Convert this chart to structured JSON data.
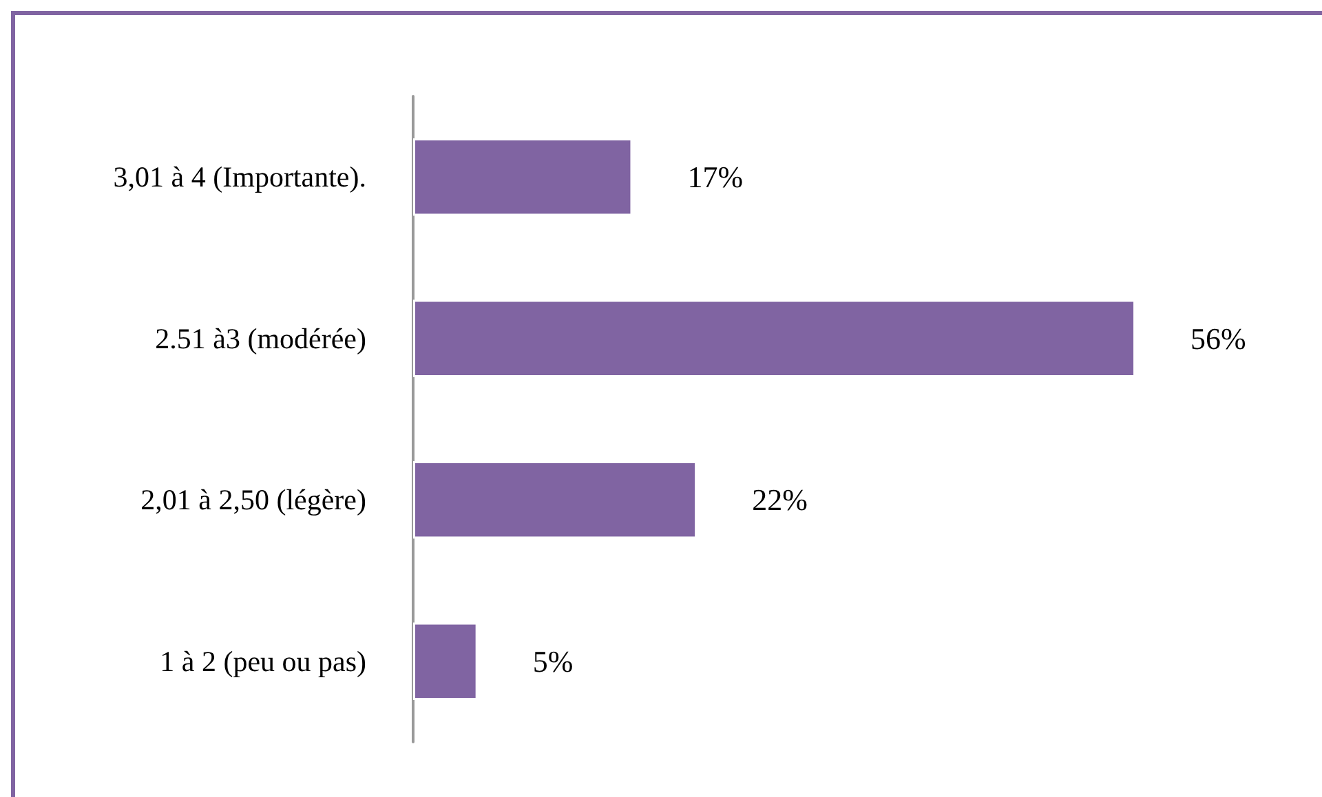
{
  "chart_data": {
    "type": "bar",
    "orientation": "horizontal",
    "categories": [
      "3,01 à 4 (Importante).",
      "2.51 à3 (modérée)",
      "2,01 à 2,50 (légère)",
      "1 à 2 (peu ou pas)"
    ],
    "values": [
      17,
      56,
      22,
      5
    ],
    "color": "#8064a2",
    "value_labels": [
      "17%",
      "56%",
      "22%",
      "5%"
    ],
    "tick_labels": "y"
  }
}
